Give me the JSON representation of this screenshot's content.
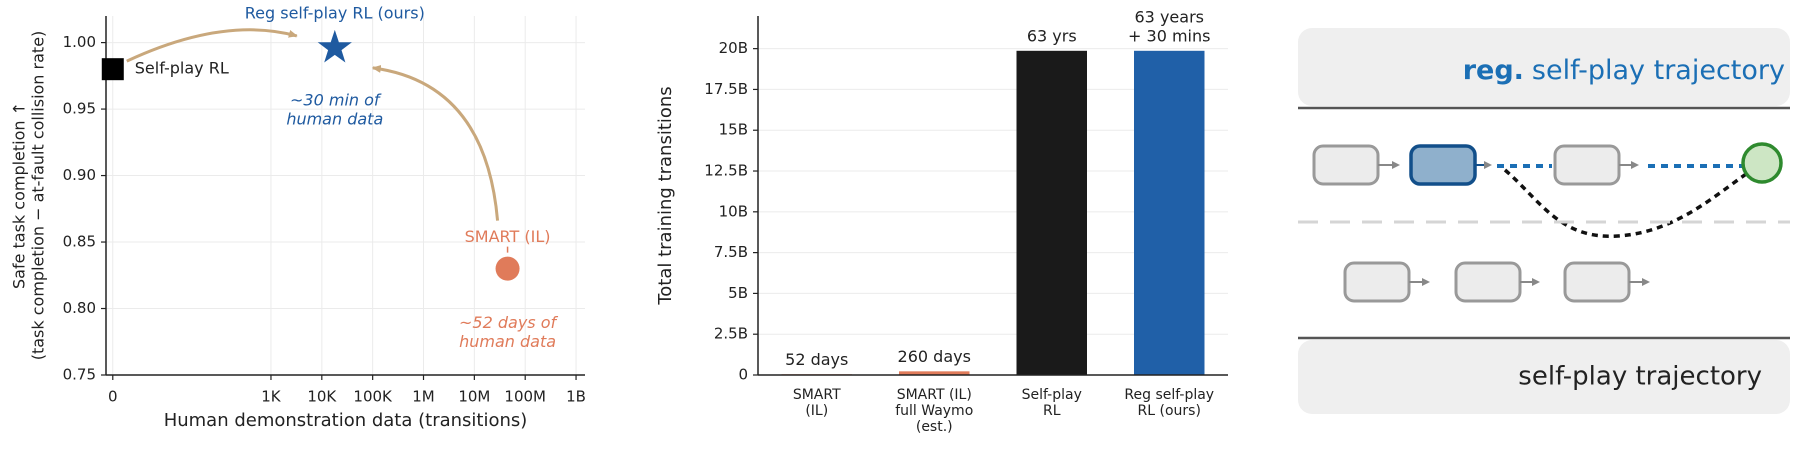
{
  "chart_data": [
    {
      "type": "scatter",
      "xlabel": "Human demonstration data (transitions)",
      "ylabel": [
        "Safe task completion ↑",
        "(task completion − at-fault collision rate)"
      ],
      "xscale": "symlog",
      "linthresh": 10,
      "xlim": [
        -1.2,
        1500000000
      ],
      "xticks": [
        0,
        {
          "value": 1000,
          "label": "1K"
        },
        {
          "value": 10000,
          "label": "10K"
        },
        {
          "value": 100000,
          "label": "100K"
        },
        {
          "value": 1000000,
          "label": "1M"
        },
        {
          "value": 10000000,
          "label": "10M"
        },
        {
          "value": 100000000,
          "label": "100M"
        },
        {
          "value": 1000000000,
          "label": "1B"
        }
      ],
      "ylim": [
        0.75,
        1.02
      ],
      "yticks": [
        0.75,
        {
          "value": 0.8,
          "label": "0.80"
        },
        0.85,
        {
          "value": 0.9,
          "label": "0.90"
        },
        0.95,
        {
          "value": 1,
          "label": "1.00"
        }
      ],
      "grid": true,
      "arrow_color": "#c9a87c",
      "series": [
        {
          "name": "Self-play RL",
          "color": "#000000",
          "marker": "square",
          "x": [
            0
          ],
          "values": [
            0.98
          ]
        },
        {
          "name": "Reg self-play RL (ours)",
          "color": "#1f5aa0",
          "marker": "star",
          "x": [
            18000
          ],
          "values": [
            0.996
          ],
          "note": [
            "~30 min of",
            "human data"
          ]
        },
        {
          "name": "SMART (IL)",
          "color": "#e07b5a",
          "marker": "circle",
          "x": [
            45000000
          ],
          "values": [
            0.83
          ],
          "note": [
            "~52 days of",
            "human data"
          ]
        }
      ]
    },
    {
      "type": "bar",
      "ylabel": "Total training transitions",
      "categories": [
        [
          "SMART",
          "(IL)"
        ],
        [
          "SMART (IL)",
          "full Waymo",
          "(est.)"
        ],
        [
          "Self-play",
          "RL"
        ],
        [
          "Reg self-play",
          "RL (ours)"
        ]
      ],
      "values": [
        44928000,
        224640000,
        19867680000,
        19867698000
      ],
      "value_labels": [
        "52 days",
        "260 days",
        "63 yrs",
        [
          "63 years",
          "+ 30 mins"
        ]
      ],
      "colors": [
        "#e07b5a",
        "#e07b5a",
        "#1a1a1a",
        "#2060a8"
      ],
      "ylim": [
        0,
        22000000000
      ],
      "yticks": [
        0,
        {
          "value": 2500000000,
          "label": "2.5B"
        },
        {
          "value": 5000000000,
          "label": "5B"
        },
        {
          "value": 7500000000,
          "label": "7.5B"
        },
        {
          "value": 10000000000,
          "label": "10B"
        },
        {
          "value": 12500000000,
          "label": "12.5B"
        },
        {
          "value": 15000000000,
          "label": "15B"
        },
        {
          "value": 17500000000,
          "label": "17.5B"
        },
        {
          "value": 20000000000,
          "label": "20B"
        }
      ],
      "grid": true
    }
  ],
  "diagram": {
    "top_label": [
      "reg.",
      "self-play trajectory"
    ],
    "bottom_label": "self-play trajectory"
  }
}
